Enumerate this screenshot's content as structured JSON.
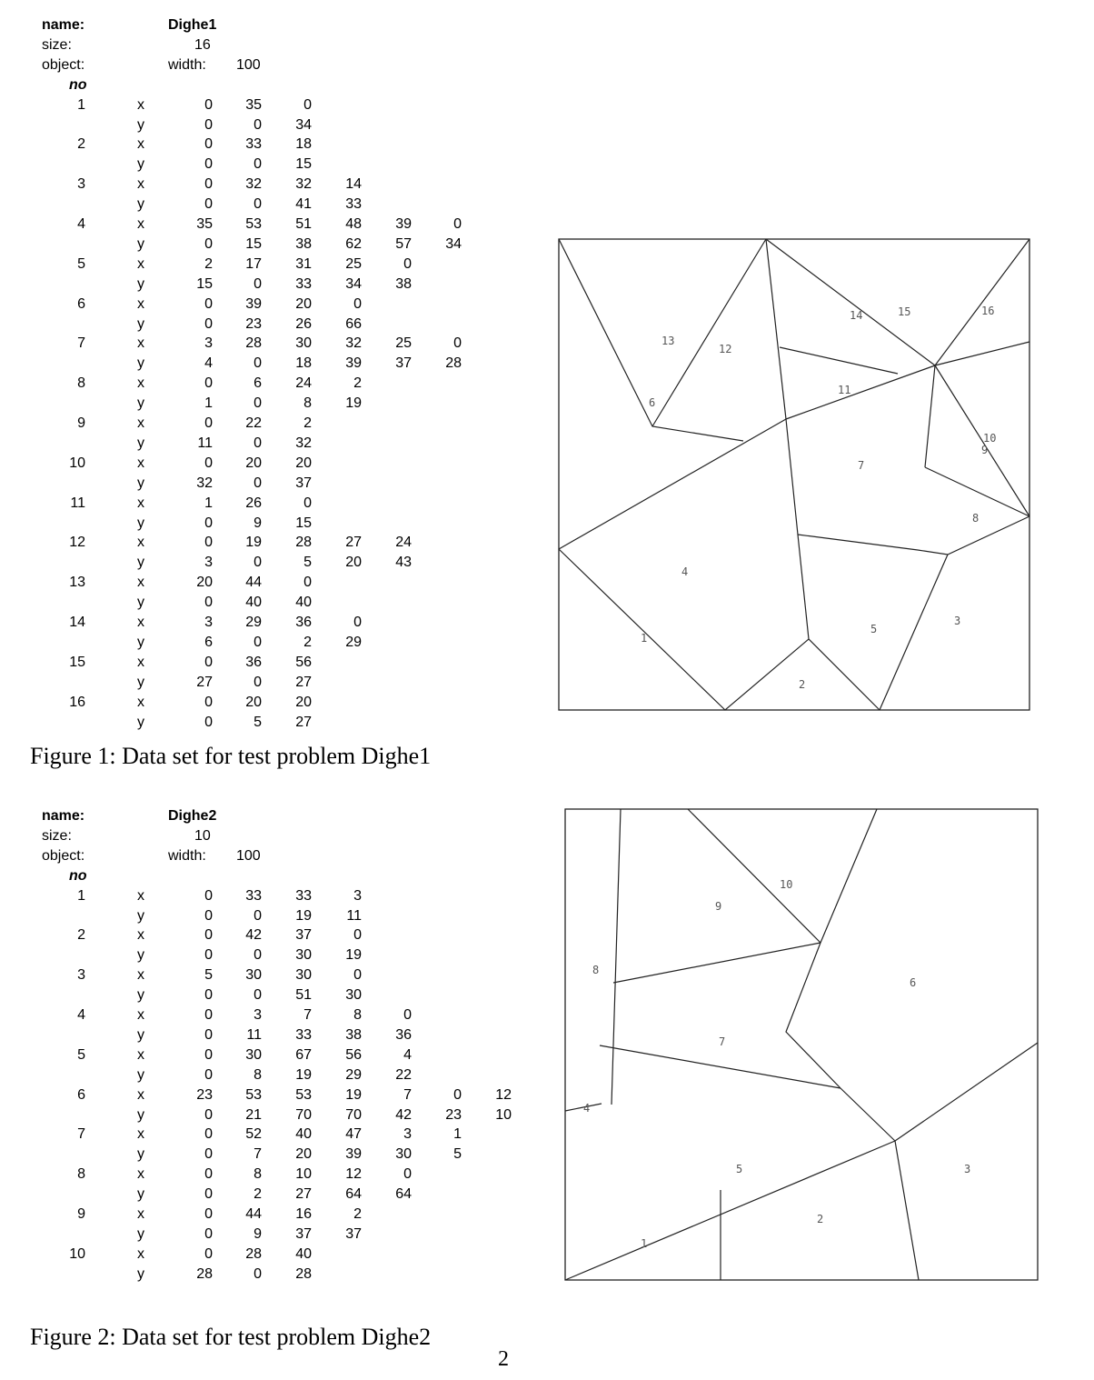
{
  "figures": [
    {
      "dataset": {
        "name_label": "name:",
        "name": "Dighe1",
        "size_label": "size:",
        "size": "16",
        "object_label": "object:",
        "width_label": "width:",
        "width": "100",
        "no_label": "no",
        "pieces": [
          {
            "no": "1",
            "x": [
              "0",
              "35",
              "0"
            ],
            "y": [
              "0",
              "0",
              "34"
            ]
          },
          {
            "no": "2",
            "x": [
              "0",
              "33",
              "18"
            ],
            "y": [
              "0",
              "0",
              "15"
            ]
          },
          {
            "no": "3",
            "x": [
              "0",
              "32",
              "32",
              "14"
            ],
            "y": [
              "0",
              "0",
              "41",
              "33"
            ]
          },
          {
            "no": "4",
            "x": [
              "35",
              "53",
              "51",
              "48",
              "39",
              "0"
            ],
            "y": [
              "0",
              "15",
              "38",
              "62",
              "57",
              "34"
            ]
          },
          {
            "no": "5",
            "x": [
              "2",
              "17",
              "31",
              "25",
              "0"
            ],
            "y": [
              "15",
              "0",
              "33",
              "34",
              "38"
            ]
          },
          {
            "no": "6",
            "x": [
              "0",
              "39",
              "20",
              "0"
            ],
            "y": [
              "0",
              "23",
              "26",
              "66"
            ]
          },
          {
            "no": "7",
            "x": [
              "3",
              "28",
              "30",
              "32",
              "25",
              "0"
            ],
            "y": [
              "4",
              "0",
              "18",
              "39",
              "37",
              "28"
            ]
          },
          {
            "no": "8",
            "x": [
              "0",
              "6",
              "24",
              "2"
            ],
            "y": [
              "1",
              "0",
              "8",
              "19"
            ]
          },
          {
            "no": "9",
            "x": [
              "0",
              "22",
              "2"
            ],
            "y": [
              "11",
              "0",
              "32"
            ]
          },
          {
            "no": "10",
            "x": [
              "0",
              "20",
              "20"
            ],
            "y": [
              "32",
              "0",
              "37"
            ]
          },
          {
            "no": "11",
            "x": [
              "1",
              "26",
              "0"
            ],
            "y": [
              "0",
              "9",
              "15"
            ]
          },
          {
            "no": "12",
            "x": [
              "0",
              "19",
              "28",
              "27",
              "24"
            ],
            "y": [
              "3",
              "0",
              "5",
              "20",
              "43"
            ]
          },
          {
            "no": "13",
            "x": [
              "20",
              "44",
              "0"
            ],
            "y": [
              "0",
              "40",
              "40"
            ]
          },
          {
            "no": "14",
            "x": [
              "3",
              "29",
              "36",
              "0"
            ],
            "y": [
              "6",
              "0",
              "2",
              "29"
            ]
          },
          {
            "no": "15",
            "x": [
              "0",
              "36",
              "56"
            ],
            "y": [
              "27",
              "0",
              "27"
            ]
          },
          {
            "no": "16",
            "x": [
              "0",
              "20",
              "20"
            ],
            "y": [
              "0",
              "5",
              "27"
            ]
          }
        ]
      },
      "caption": "Figure 1: Data set for test problem Dighe1",
      "layout_labels": [
        "1",
        "2",
        "3",
        "4",
        "5",
        "6",
        "7",
        "8",
        "9",
        "10",
        "11",
        "12",
        "13",
        "14",
        "15",
        "16"
      ]
    },
    {
      "dataset": {
        "name_label": "name:",
        "name": "Dighe2",
        "size_label": "size:",
        "size": "10",
        "object_label": "object:",
        "width_label": "width:",
        "width": "100",
        "no_label": "no",
        "pieces": [
          {
            "no": "1",
            "x": [
              "0",
              "33",
              "33",
              "3"
            ],
            "y": [
              "0",
              "0",
              "19",
              "11"
            ]
          },
          {
            "no": "2",
            "x": [
              "0",
              "42",
              "37",
              "0"
            ],
            "y": [
              "0",
              "0",
              "30",
              "19"
            ]
          },
          {
            "no": "3",
            "x": [
              "5",
              "30",
              "30",
              "0"
            ],
            "y": [
              "0",
              "0",
              "51",
              "30"
            ]
          },
          {
            "no": "4",
            "x": [
              "0",
              "3",
              "7",
              "8",
              "0"
            ],
            "y": [
              "0",
              "11",
              "33",
              "38",
              "36"
            ]
          },
          {
            "no": "5",
            "x": [
              "0",
              "30",
              "67",
              "56",
              "4"
            ],
            "y": [
              "0",
              "8",
              "19",
              "29",
              "22"
            ]
          },
          {
            "no": "6",
            "x": [
              "23",
              "53",
              "53",
              "19",
              "7",
              "0",
              "12"
            ],
            "y": [
              "0",
              "21",
              "70",
              "70",
              "42",
              "23",
              "10"
            ]
          },
          {
            "no": "7",
            "x": [
              "0",
              "52",
              "40",
              "47",
              "3",
              "1"
            ],
            "y": [
              "0",
              "7",
              "20",
              "39",
              "30",
              "5"
            ]
          },
          {
            "no": "8",
            "x": [
              "0",
              "8",
              "10",
              "12",
              "0"
            ],
            "y": [
              "0",
              "2",
              "27",
              "64",
              "64"
            ]
          },
          {
            "no": "9",
            "x": [
              "0",
              "44",
              "16",
              "2"
            ],
            "y": [
              "0",
              "9",
              "37",
              "37"
            ]
          },
          {
            "no": "10",
            "x": [
              "0",
              "28",
              "40"
            ],
            "y": [
              "28",
              "0",
              "28"
            ]
          }
        ]
      },
      "caption": "Figure 2: Data set for test problem Dighe2",
      "layout_labels": [
        "1",
        "2",
        "3",
        "4",
        "5",
        "6",
        "7",
        "8",
        "9",
        "10"
      ]
    }
  ],
  "page_number": "2"
}
